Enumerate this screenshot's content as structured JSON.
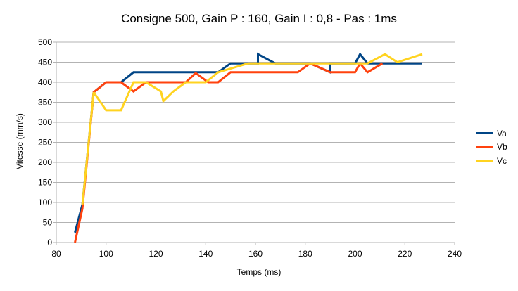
{
  "chart_data": {
    "type": "line",
    "title": "Consigne 500, Gain P : 160, Gain I : 0,8 - Pas : 1ms",
    "xlabel": "Temps (ms)",
    "ylabel": "Vitesse (mm/s)",
    "xlim": [
      80,
      240
    ],
    "ylim": [
      0,
      500
    ],
    "xticks": [
      80,
      100,
      120,
      140,
      160,
      180,
      200,
      220,
      240
    ],
    "yticks": [
      0,
      50,
      100,
      150,
      200,
      250,
      300,
      350,
      400,
      450,
      500
    ],
    "grid": "horizontal",
    "legend": "right",
    "series": [
      {
        "name": "Va",
        "color": "#004586",
        "points": [
          [
            87.5,
            25
          ],
          [
            90.5,
            95
          ],
          [
            95,
            375
          ],
          [
            100,
            400
          ],
          [
            106,
            400
          ],
          [
            111,
            425
          ],
          [
            123,
            425
          ],
          [
            145,
            425
          ],
          [
            150,
            447
          ],
          [
            161,
            447
          ],
          [
            161,
            470
          ],
          [
            168,
            447
          ],
          [
            182,
            447
          ],
          [
            190,
            425
          ],
          [
            190,
            447
          ],
          [
            200,
            447
          ],
          [
            202,
            470
          ],
          [
            205,
            447
          ],
          [
            227,
            447
          ]
        ]
      },
      {
        "name": "Vb",
        "color": "#ff420e",
        "points": [
          [
            87.5,
            0
          ],
          [
            90.5,
            85
          ],
          [
            95,
            375
          ],
          [
            100,
            400
          ],
          [
            106,
            400
          ],
          [
            111,
            377
          ],
          [
            116,
            400
          ],
          [
            132,
            400
          ],
          [
            136,
            423
          ],
          [
            141,
            400
          ],
          [
            145,
            400
          ],
          [
            150,
            425
          ],
          [
            177,
            425
          ],
          [
            182,
            447
          ],
          [
            190,
            425
          ],
          [
            200,
            425
          ],
          [
            202,
            447
          ],
          [
            205,
            425
          ],
          [
            211,
            447
          ]
        ]
      },
      {
        "name": "Vc",
        "color": "#ffd320",
        "points": [
          [
            90.5,
            95
          ],
          [
            95,
            375
          ],
          [
            100,
            330
          ],
          [
            106,
            330
          ],
          [
            111,
            400
          ],
          [
            116,
            400
          ],
          [
            122,
            377
          ],
          [
            123,
            353
          ],
          [
            127,
            377
          ],
          [
            132,
            400
          ],
          [
            140,
            400
          ],
          [
            145,
            425
          ],
          [
            157,
            447
          ],
          [
            177,
            447
          ],
          [
            190,
            447
          ],
          [
            202,
            447
          ],
          [
            205,
            447
          ],
          [
            212,
            470
          ],
          [
            217,
            450
          ],
          [
            227,
            470
          ]
        ]
      }
    ]
  }
}
